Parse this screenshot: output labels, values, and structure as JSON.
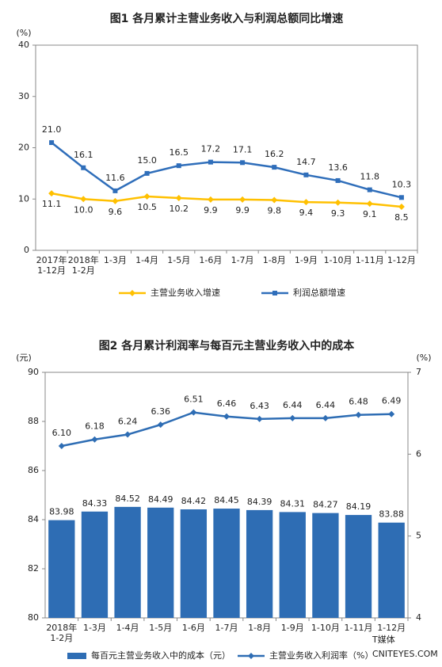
{
  "chart_data": [
    {
      "type": "line",
      "title": "图1  各月累计主营业务收入与利润总额同比增速",
      "y_unit": "(%)",
      "categories": [
        "2017年\n1-12月",
        "2018年\n1-2月",
        "1-3月",
        "1-4月",
        "1-5月",
        "1-6月",
        "1-7月",
        "1-8月",
        "1-9月",
        "1-10月",
        "1-11月",
        "1-12月"
      ],
      "ylim": [
        0,
        40
      ],
      "yticks": [
        0,
        10,
        20,
        30,
        40
      ],
      "series": [
        {
          "name": "主营业务收入增速",
          "color": "#FFC000",
          "marker": "diamond",
          "values": [
            11.1,
            10.0,
            9.6,
            10.5,
            10.2,
            9.9,
            9.9,
            9.8,
            9.4,
            9.3,
            9.1,
            8.5
          ],
          "value_labels": [
            "11.1",
            "10.0",
            "9.6",
            "10.5",
            "10.2",
            "9.9",
            "9.9",
            "9.8",
            "9.4",
            "9.3",
            "9.1",
            "8.5"
          ]
        },
        {
          "name": "利润总额增速",
          "color": "#2F6EBA",
          "marker": "square",
          "values": [
            21.0,
            16.1,
            11.6,
            15.0,
            16.5,
            17.2,
            17.1,
            16.2,
            14.7,
            13.6,
            11.8,
            10.3
          ],
          "value_labels": [
            "21.0",
            "16.1",
            "11.6",
            "15.0",
            "16.5",
            "17.2",
            "17.1",
            "16.2",
            "14.7",
            "13.6",
            "11.8",
            "10.3"
          ]
        }
      ]
    },
    {
      "type": "bar",
      "title": "图2  各月累计利润率与每百元主营业务收入中的成本",
      "y_unit": "(元)",
      "y2_unit": "(%)",
      "categories": [
        "2018年\n1-2月",
        "1-3月",
        "1-4月",
        "1-5月",
        "1-6月",
        "1-7月",
        "1-8月",
        "1-9月",
        "1-10月",
        "1-11月",
        "1-12月"
      ],
      "ylim": [
        80,
        90
      ],
      "yticks": [
        80,
        82,
        84,
        86,
        88,
        90
      ],
      "y2lim": [
        4,
        7
      ],
      "y2ticks": [
        4,
        5,
        6,
        7
      ],
      "series": [
        {
          "name": "每百元主营业务收入中的成本（元）",
          "type": "bar",
          "color": "#2E6DB4",
          "values": [
            83.98,
            84.33,
            84.52,
            84.49,
            84.42,
            84.45,
            84.39,
            84.31,
            84.27,
            84.19,
            83.88
          ]
        },
        {
          "name": "主营业务收入利润率（%）",
          "type": "line",
          "axis": "y2",
          "color": "#2E6DB4",
          "marker": "diamond",
          "values": [
            6.1,
            6.18,
            6.24,
            6.36,
            6.51,
            6.46,
            6.43,
            6.44,
            6.44,
            6.48,
            6.49
          ],
          "value_labels": [
            "6.10",
            "6.18",
            "6.24",
            "6.36",
            "6.51",
            "6.46",
            "6.43",
            "6.44",
            "6.44",
            "6.48",
            "6.49"
          ]
        }
      ]
    }
  ],
  "watermark": {
    "logo": "T媒体",
    "site": "CNITEYES.COM"
  }
}
